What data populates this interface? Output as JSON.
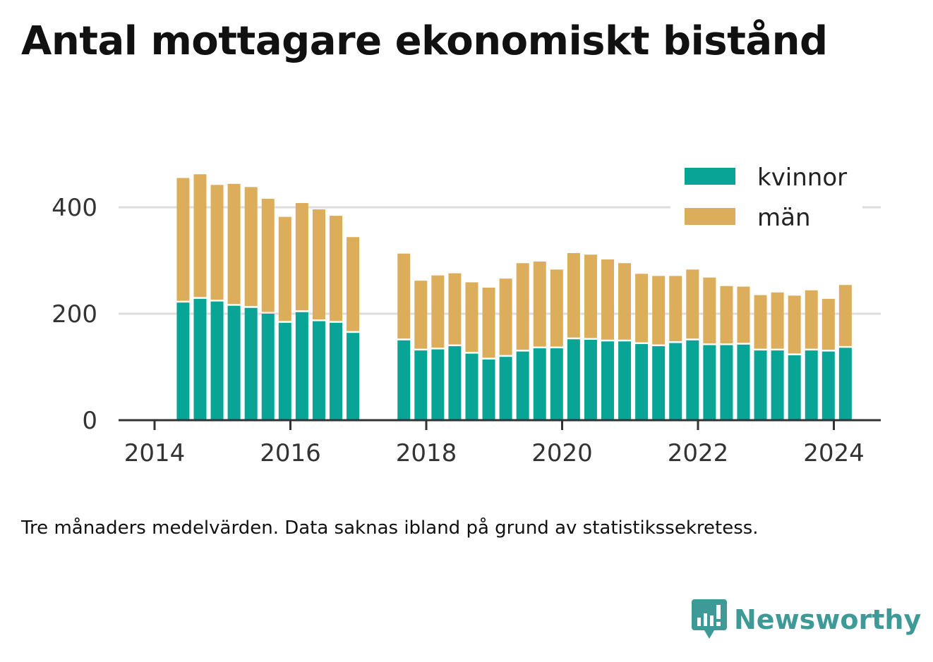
{
  "title": "Antal mottagare ekonomiskt bistånd",
  "footnote": "Tre månaders medelvärden. Data saknas ibland på grund av statistikssekretess.",
  "brand": {
    "name": "Newsworthy",
    "icon": "newsworthy-logo-icon"
  },
  "colors": {
    "kvinnor": "#08a597",
    "man": "#dcad5b",
    "grid": "#dddddd",
    "axis": "#333333",
    "brand": "#3d9a96"
  },
  "chart_data": {
    "type": "bar",
    "stacked": true,
    "title": "Antal mottagare ekonomiskt bistånd",
    "xlabel": "",
    "ylabel": "",
    "ylim": [
      0,
      480
    ],
    "xlim": [
      2013.7,
      2024.9
    ],
    "y_ticks": [
      0,
      200,
      400
    ],
    "x_ticks": [
      2014,
      2016,
      2018,
      2020,
      2022,
      2024
    ],
    "grid": true,
    "legend_position": "top-right",
    "x": [
      2014.42,
      2014.67,
      2014.92,
      2015.17,
      2015.42,
      2015.67,
      2015.92,
      2016.17,
      2016.42,
      2016.67,
      2016.92,
      2017.67,
      2017.92,
      2018.17,
      2018.42,
      2018.67,
      2018.92,
      2019.17,
      2019.42,
      2019.67,
      2019.92,
      2020.17,
      2020.42,
      2020.67,
      2020.92,
      2021.17,
      2021.42,
      2021.67,
      2021.92,
      2022.17,
      2022.42,
      2022.67,
      2022.92,
      2023.17,
      2023.42,
      2023.67,
      2023.92,
      2024.17
    ],
    "series": [
      {
        "name": "kvinnor",
        "values": [
          221,
          228,
          223,
          215,
          211,
          200,
          183,
          203,
          186,
          183,
          164,
          150,
          131,
          133,
          139,
          125,
          114,
          119,
          129,
          135,
          135,
          152,
          151,
          148,
          148,
          143,
          139,
          145,
          150,
          141,
          141,
          142,
          131,
          131,
          122,
          131,
          129,
          136
        ]
      },
      {
        "name": "män",
        "values": [
          234,
          234,
          219,
          229,
          227,
          216,
          199,
          205,
          210,
          201,
          180,
          163,
          131,
          139,
          137,
          134,
          135,
          147,
          166,
          163,
          148,
          162,
          160,
          154,
          147,
          132,
          132,
          126,
          133,
          127,
          111,
          109,
          104,
          109,
          112,
          113,
          99,
          118
        ]
      }
    ]
  }
}
